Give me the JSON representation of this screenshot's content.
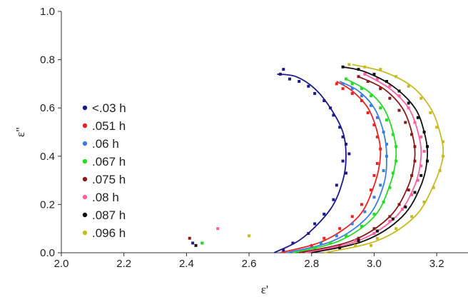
{
  "chart_data": {
    "type": "scatter",
    "title": "",
    "xlabel": "ε'",
    "ylabel": "ε\"",
    "xlim": [
      2.0,
      3.3
    ],
    "ylim": [
      0.0,
      1.0
    ],
    "x_ticks": [
      "2.0",
      "2.2",
      "2.4",
      "2.6",
      "2.8",
      "3.0",
      "3.2"
    ],
    "y_ticks": [
      "0.0",
      "0.2",
      "0.4",
      "0.6",
      "0.8",
      "1.0"
    ],
    "grid": false,
    "legend_position": "left",
    "series": [
      {
        "name": "<.03 h",
        "color": "#1a1a8c",
        "fit_curve": [
          [
            2.68,
            0.0
          ],
          [
            2.77,
            0.06
          ],
          [
            2.86,
            0.18
          ],
          [
            2.9,
            0.3
          ],
          [
            2.91,
            0.4
          ],
          [
            2.9,
            0.5
          ],
          [
            2.86,
            0.6
          ],
          [
            2.81,
            0.68
          ],
          [
            2.75,
            0.73
          ],
          [
            2.69,
            0.74
          ]
        ],
        "points": [
          [
            2.71,
            0.76
          ],
          [
            2.7,
            0.74
          ],
          [
            2.73,
            0.72
          ],
          [
            2.76,
            0.71
          ],
          [
            2.79,
            0.69
          ],
          [
            2.81,
            0.66
          ],
          [
            2.84,
            0.63
          ],
          [
            2.86,
            0.6
          ],
          [
            2.87,
            0.57
          ],
          [
            2.89,
            0.52
          ],
          [
            2.9,
            0.48
          ],
          [
            2.91,
            0.45
          ],
          [
            2.92,
            0.41
          ],
          [
            2.9,
            0.38
          ],
          [
            2.91,
            0.33
          ],
          [
            2.88,
            0.28
          ],
          [
            2.87,
            0.22
          ],
          [
            2.84,
            0.16
          ],
          [
            2.81,
            0.12
          ],
          [
            2.79,
            0.08
          ],
          [
            2.74,
            0.04
          ],
          [
            2.71,
            0.01
          ],
          [
            2.42,
            0.04
          ]
        ]
      },
      {
        "name": ".051 h",
        "color": "#ee2222",
        "fit_curve": [
          [
            2.7,
            0.0
          ],
          [
            2.84,
            0.05
          ],
          [
            2.95,
            0.15
          ],
          [
            3.0,
            0.28
          ],
          [
            3.02,
            0.4
          ],
          [
            3.01,
            0.5
          ],
          [
            2.98,
            0.6
          ],
          [
            2.93,
            0.67
          ],
          [
            2.88,
            0.71
          ]
        ],
        "points": [
          [
            2.88,
            0.7
          ],
          [
            2.9,
            0.68
          ],
          [
            2.93,
            0.66
          ],
          [
            2.96,
            0.63
          ],
          [
            2.98,
            0.58
          ],
          [
            3.0,
            0.53
          ],
          [
            3.01,
            0.48
          ],
          [
            3.02,
            0.43
          ],
          [
            3.01,
            0.37
          ],
          [
            3.0,
            0.32
          ],
          [
            2.99,
            0.26
          ],
          [
            2.96,
            0.2
          ],
          [
            2.93,
            0.15
          ],
          [
            2.89,
            0.1
          ],
          [
            2.84,
            0.06
          ],
          [
            2.8,
            0.03
          ],
          [
            2.45,
            0.04
          ]
        ]
      },
      {
        "name": ".06 h",
        "color": "#3a7fe0",
        "fit_curve": [
          [
            2.72,
            0.0
          ],
          [
            2.87,
            0.05
          ],
          [
            2.98,
            0.15
          ],
          [
            3.03,
            0.28
          ],
          [
            3.04,
            0.4
          ],
          [
            3.03,
            0.5
          ],
          [
            3.0,
            0.6
          ],
          [
            2.95,
            0.67
          ],
          [
            2.89,
            0.71
          ]
        ],
        "points": [
          [
            2.9,
            0.7
          ],
          [
            2.93,
            0.68
          ],
          [
            2.96,
            0.65
          ],
          [
            2.99,
            0.61
          ],
          [
            3.01,
            0.56
          ],
          [
            3.03,
            0.5
          ],
          [
            3.04,
            0.45
          ],
          [
            3.04,
            0.4
          ],
          [
            3.03,
            0.34
          ],
          [
            3.02,
            0.28
          ],
          [
            3.0,
            0.23
          ],
          [
            2.97,
            0.17
          ],
          [
            2.93,
            0.12
          ],
          [
            2.88,
            0.07
          ],
          [
            2.83,
            0.04
          ]
        ]
      },
      {
        "name": ".067 h",
        "color": "#22dd22",
        "fit_curve": [
          [
            2.74,
            0.0
          ],
          [
            2.89,
            0.05
          ],
          [
            3.0,
            0.15
          ],
          [
            3.05,
            0.28
          ],
          [
            3.07,
            0.4
          ],
          [
            3.06,
            0.5
          ],
          [
            3.03,
            0.6
          ],
          [
            2.98,
            0.67
          ],
          [
            2.91,
            0.72
          ]
        ],
        "points": [
          [
            2.91,
            0.72
          ],
          [
            2.93,
            0.7
          ],
          [
            2.96,
            0.68
          ],
          [
            2.99,
            0.65
          ],
          [
            3.02,
            0.6
          ],
          [
            3.04,
            0.55
          ],
          [
            3.06,
            0.49
          ],
          [
            3.07,
            0.44
          ],
          [
            3.07,
            0.38
          ],
          [
            3.06,
            0.33
          ],
          [
            3.05,
            0.27
          ],
          [
            3.03,
            0.21
          ],
          [
            3.0,
            0.16
          ],
          [
            2.96,
            0.11
          ],
          [
            2.91,
            0.07
          ],
          [
            2.86,
            0.04
          ],
          [
            2.81,
            0.02
          ],
          [
            2.45,
            0.04
          ]
        ]
      },
      {
        "name": ".075 h",
        "color": "#8b1a1a",
        "fit_curve": [
          [
            2.76,
            0.0
          ],
          [
            2.93,
            0.05
          ],
          [
            3.05,
            0.15
          ],
          [
            3.11,
            0.28
          ],
          [
            3.13,
            0.4
          ],
          [
            3.12,
            0.5
          ],
          [
            3.09,
            0.6
          ],
          [
            3.03,
            0.68
          ],
          [
            2.95,
            0.73
          ]
        ],
        "points": [
          [
            2.95,
            0.73
          ],
          [
            2.98,
            0.71
          ],
          [
            3.02,
            0.68
          ],
          [
            3.05,
            0.64
          ],
          [
            3.08,
            0.59
          ],
          [
            3.1,
            0.54
          ],
          [
            3.12,
            0.49
          ],
          [
            3.13,
            0.44
          ],
          [
            3.13,
            0.38
          ],
          [
            3.12,
            0.32
          ],
          [
            3.11,
            0.26
          ],
          [
            3.08,
            0.2
          ],
          [
            3.05,
            0.15
          ],
          [
            3.0,
            0.1
          ],
          [
            2.95,
            0.06
          ],
          [
            2.89,
            0.03
          ],
          [
            2.41,
            0.06
          ]
        ]
      },
      {
        "name": ".08 h",
        "color": "#ff5fa0",
        "fit_curve": [
          [
            2.78,
            0.0
          ],
          [
            2.95,
            0.05
          ],
          [
            3.07,
            0.15
          ],
          [
            3.13,
            0.28
          ],
          [
            3.15,
            0.4
          ],
          [
            3.14,
            0.5
          ],
          [
            3.11,
            0.6
          ],
          [
            3.05,
            0.68
          ],
          [
            2.97,
            0.74
          ]
        ],
        "points": [
          [
            2.97,
            0.74
          ],
          [
            3.01,
            0.72
          ],
          [
            3.05,
            0.69
          ],
          [
            3.08,
            0.65
          ],
          [
            3.11,
            0.6
          ],
          [
            3.13,
            0.54
          ],
          [
            3.15,
            0.48
          ],
          [
            3.16,
            0.42
          ],
          [
            3.15,
            0.36
          ],
          [
            3.14,
            0.3
          ],
          [
            3.12,
            0.24
          ],
          [
            3.09,
            0.18
          ],
          [
            3.05,
            0.13
          ],
          [
            3.0,
            0.08
          ],
          [
            2.94,
            0.05
          ],
          [
            2.87,
            0.02
          ],
          [
            2.5,
            0.1
          ]
        ]
      },
      {
        "name": ".087 h",
        "color": "#111111",
        "fit_curve": [
          [
            2.8,
            0.0
          ],
          [
            2.97,
            0.05
          ],
          [
            3.09,
            0.15
          ],
          [
            3.15,
            0.28
          ],
          [
            3.17,
            0.4
          ],
          [
            3.16,
            0.5
          ],
          [
            3.13,
            0.6
          ],
          [
            3.06,
            0.69
          ],
          [
            2.97,
            0.75
          ],
          [
            2.9,
            0.77
          ]
        ],
        "points": [
          [
            2.9,
            0.77
          ],
          [
            2.95,
            0.76
          ],
          [
            3.0,
            0.74
          ],
          [
            3.04,
            0.71
          ],
          [
            3.08,
            0.67
          ],
          [
            3.11,
            0.62
          ],
          [
            3.14,
            0.56
          ],
          [
            3.16,
            0.5
          ],
          [
            3.17,
            0.44
          ],
          [
            3.17,
            0.38
          ],
          [
            3.15,
            0.32
          ],
          [
            3.13,
            0.25
          ],
          [
            3.1,
            0.19
          ],
          [
            3.06,
            0.14
          ],
          [
            3.01,
            0.09
          ],
          [
            2.95,
            0.05
          ],
          [
            2.89,
            0.02
          ],
          [
            2.43,
            0.03
          ]
        ]
      },
      {
        "name": ".096 h",
        "color": "#c8bb22",
        "fit_curve": [
          [
            2.84,
            0.0
          ],
          [
            3.01,
            0.05
          ],
          [
            3.13,
            0.15
          ],
          [
            3.19,
            0.28
          ],
          [
            3.22,
            0.4
          ],
          [
            3.21,
            0.5
          ],
          [
            3.18,
            0.6
          ],
          [
            3.12,
            0.69
          ],
          [
            3.03,
            0.75
          ],
          [
            2.93,
            0.78
          ]
        ],
        "points": [
          [
            2.92,
            0.78
          ],
          [
            2.97,
            0.77
          ],
          [
            3.02,
            0.76
          ],
          [
            3.07,
            0.73
          ],
          [
            3.11,
            0.69
          ],
          [
            3.15,
            0.64
          ],
          [
            3.18,
            0.58
          ],
          [
            3.2,
            0.52
          ],
          [
            3.22,
            0.46
          ],
          [
            3.22,
            0.4
          ],
          [
            3.21,
            0.34
          ],
          [
            3.19,
            0.27
          ],
          [
            3.16,
            0.21
          ],
          [
            3.12,
            0.15
          ],
          [
            3.07,
            0.1
          ],
          [
            3.01,
            0.06
          ],
          [
            2.94,
            0.03
          ],
          [
            2.99,
            0.03
          ],
          [
            2.6,
            0.07
          ]
        ]
      }
    ]
  }
}
